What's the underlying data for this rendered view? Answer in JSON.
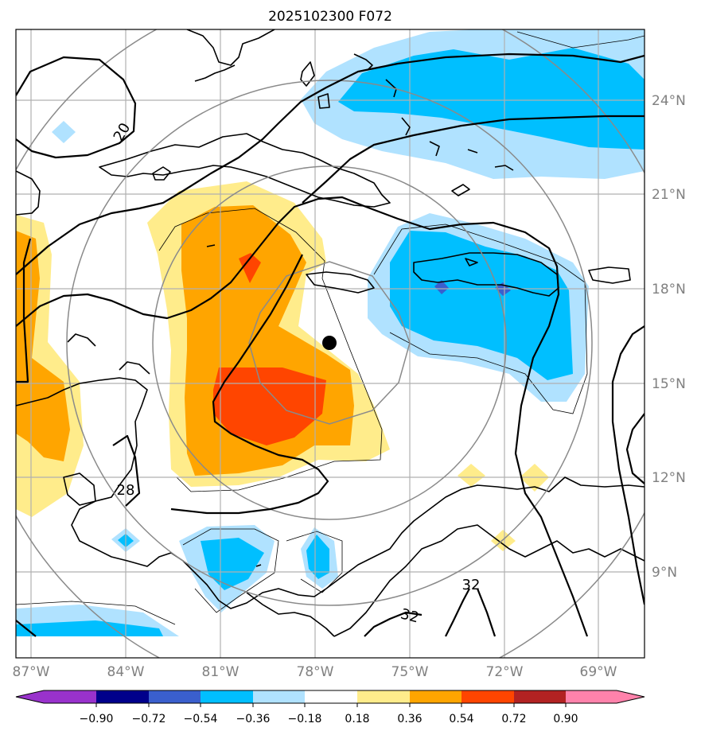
{
  "title": "2025102300 F072",
  "lon_labels": [
    "87°W",
    "84°W",
    "81°W",
    "78°W",
    "75°W",
    "72°W",
    "69°W"
  ],
  "lat_labels": [
    "24°N",
    "21°N",
    "18°N",
    "15°N",
    "12°N",
    "9°N"
  ],
  "contour_labels": [
    "20",
    "28",
    "32",
    "32"
  ],
  "colorbar": {
    "ticks": [
      "−0.90",
      "−0.72",
      "−0.54",
      "−0.36",
      "−0.18",
      "0.18",
      "0.36",
      "0.54",
      "0.72",
      "0.90"
    ],
    "colors": [
      "#9932cc",
      "#00008b",
      "#3a5fcd",
      "#00bfff",
      "#b0e2ff",
      "#ffffff",
      "#ffec8b",
      "#ffa500",
      "#ff4500",
      "#b22222",
      "#ff82ab"
    ]
  },
  "storm_center": {
    "lon": -77.6,
    "lat": 16.3
  }
}
